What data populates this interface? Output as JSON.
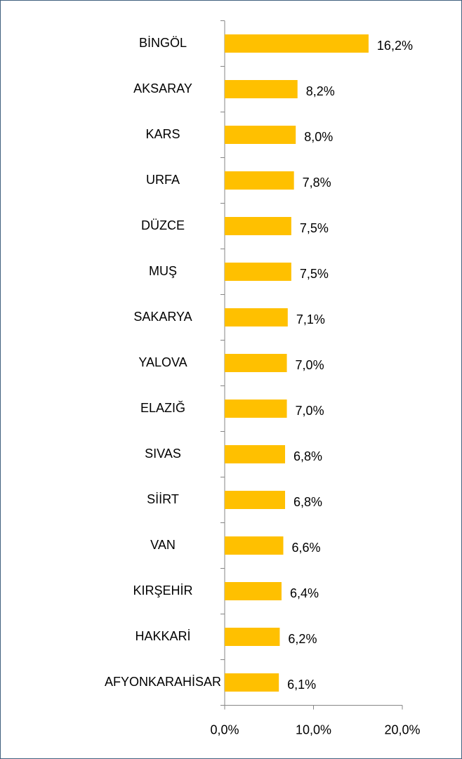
{
  "chart_data": {
    "type": "bar",
    "orientation": "horizontal",
    "categories": [
      "BİNGÖL",
      "AKSARAY",
      "KARS",
      "URFA",
      "DÜZCE",
      "MUŞ",
      "SAKARYA",
      "YALOVA",
      "ELAZIĞ",
      "SIVAS",
      "SİİRT",
      "VAN",
      "KIRŞEHİR",
      "HAKKARİ",
      "AFYONKARAHİSAR"
    ],
    "values": [
      16.2,
      8.2,
      8.0,
      7.8,
      7.5,
      7.5,
      7.1,
      7.0,
      7.0,
      6.8,
      6.8,
      6.6,
      6.4,
      6.2,
      6.1
    ],
    "value_labels": [
      "16,2%",
      "8,2%",
      "8,0%",
      "7,8%",
      "7,5%",
      "7,5%",
      "7,1%",
      "7,0%",
      "7,0%",
      "6,8%",
      "6,8%",
      "6,6%",
      "6,4%",
      "6,2%",
      "6,1%"
    ],
    "color": "#ffc000",
    "xlim": [
      0,
      20
    ],
    "xticks": [
      {
        "value": 0,
        "label": "0,0%"
      },
      {
        "value": 10,
        "label": "10,0%"
      },
      {
        "value": 20,
        "label": "20,0%"
      }
    ],
    "grid": false
  }
}
